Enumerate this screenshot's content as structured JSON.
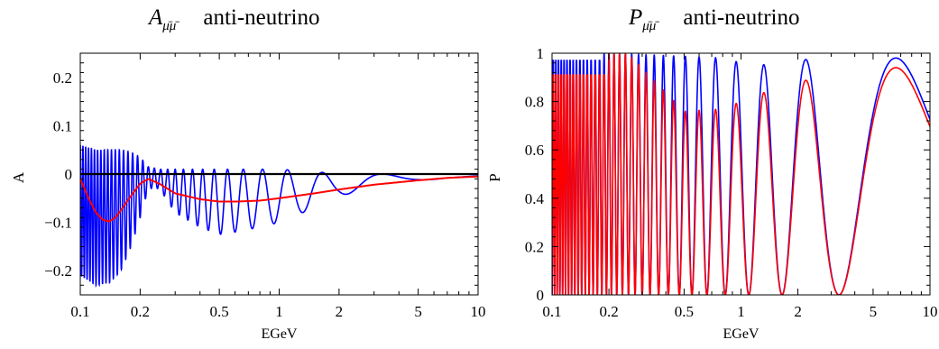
{
  "chart_data": [
    {
      "type": "line",
      "title_symbol": "A",
      "title_subscript": "μ̄μ̄",
      "title_text": "anti-neutrino",
      "xlabel": "EGeV",
      "ylabel": "A",
      "xscale": "log",
      "xlim": [
        0.1,
        10
      ],
      "ylim": [
        -0.25,
        0.25
      ],
      "xticks": [
        {
          "value": 0.1,
          "label": "0.1"
        },
        {
          "value": 0.2,
          "label": "0.2"
        },
        {
          "value": 0.5,
          "label": "0.5"
        },
        {
          "value": 1,
          "label": "1"
        },
        {
          "value": 2,
          "label": "2"
        },
        {
          "value": 5,
          "label": "5"
        },
        {
          "value": 10,
          "label": "10"
        }
      ],
      "yticks": [
        {
          "value": 0.2,
          "label": "0.2"
        },
        {
          "value": 0.1,
          "label": "0.1"
        },
        {
          "value": 0,
          "label": "0"
        },
        {
          "value": -0.1,
          "label": "-0.1"
        },
        {
          "value": -0.2,
          "label": "-0.2"
        }
      ],
      "grid": false,
      "series": [
        {
          "color": "#0000ff",
          "description": "oscillating curve",
          "x": [
            0.1,
            0.12,
            0.14,
            0.16,
            0.18,
            0.2,
            0.22,
            0.25,
            0.3,
            0.4,
            0.5,
            0.6,
            0.8,
            1,
            1.5,
            2,
            3,
            5,
            7,
            10
          ],
          "envelope_upper": [
            0.06,
            0.05,
            0.05,
            0.05,
            0.045,
            0.035,
            0.015,
            0.01,
            0.01,
            0.01,
            0.01,
            0.01,
            0.01,
            0.01,
            0.005,
            0.0,
            0.0,
            0.0,
            0.0,
            0.0
          ],
          "envelope_lower": [
            -0.21,
            -0.23,
            -0.225,
            -0.2,
            -0.15,
            -0.09,
            -0.03,
            -0.03,
            -0.08,
            -0.11,
            -0.125,
            -0.12,
            -0.11,
            -0.1,
            -0.07,
            -0.045,
            -0.03,
            -0.015,
            -0.008,
            -0.005
          ]
        },
        {
          "color": "#ff0000",
          "description": "smooth curve",
          "x": [
            0.1,
            0.11,
            0.12,
            0.13,
            0.14,
            0.15,
            0.16,
            0.18,
            0.2,
            0.22,
            0.25,
            0.3,
            0.4,
            0.5,
            0.6,
            0.8,
            1,
            1.5,
            2,
            3,
            5,
            7,
            10
          ],
          "y": [
            -0.01,
            -0.05,
            -0.08,
            -0.095,
            -0.098,
            -0.09,
            -0.075,
            -0.045,
            -0.02,
            -0.01,
            -0.02,
            -0.04,
            -0.052,
            -0.057,
            -0.057,
            -0.055,
            -0.05,
            -0.04,
            -0.032,
            -0.022,
            -0.013,
            -0.008,
            -0.005
          ]
        },
        {
          "color": "#000000",
          "description": "zero line",
          "x": [
            0.1,
            10
          ],
          "y": [
            0,
            0
          ]
        }
      ]
    },
    {
      "type": "line",
      "title_symbol": "P",
      "title_subscript": "μ̄μ̄",
      "title_text": "anti-neutrino",
      "xlabel": "EGeV",
      "ylabel": "P",
      "xscale": "log",
      "xlim": [
        0.1,
        10
      ],
      "ylim": [
        0,
        1
      ],
      "xticks": [
        {
          "value": 0.1,
          "label": "0.1"
        },
        {
          "value": 0.2,
          "label": "0.2"
        },
        {
          "value": 0.5,
          "label": "0.5"
        },
        {
          "value": 1,
          "label": "1"
        },
        {
          "value": 2,
          "label": "2"
        },
        {
          "value": 5,
          "label": "5"
        },
        {
          "value": 10,
          "label": "10"
        }
      ],
      "yticks": [
        {
          "value": 1,
          "label": "1"
        },
        {
          "value": 0.8,
          "label": "0.8"
        },
        {
          "value": 0.6,
          "label": "0.6"
        },
        {
          "value": 0.4,
          "label": "0.4"
        },
        {
          "value": 0.2,
          "label": "0.2"
        },
        {
          "value": 0,
          "label": "0"
        }
      ],
      "grid": false,
      "series": [
        {
          "color": "#0000ff",
          "description": "oscillation probability (blue)",
          "zero_crossings_GeV": [
            3.3,
            1.65,
            1.1,
            0.82,
            0.66,
            0.55,
            0.47
          ],
          "peaks": [
            {
              "x": 5.0,
              "y": 0.98
            },
            {
              "x": 2.5,
              "y": 0.98
            },
            {
              "x": 1.65,
              "y": 0.96
            },
            {
              "x": 1.24,
              "y": 0.95
            },
            {
              "x": 0.99,
              "y": 0.96
            },
            {
              "x": 0.82,
              "y": 0.98
            },
            {
              "x": 0.2,
              "y": 1.0
            }
          ],
          "low_energy_band": {
            "x": [
              0.1,
              0.18
            ],
            "y_min": 0.0,
            "y_max": 0.97
          }
        },
        {
          "color": "#ff0000",
          "description": "oscillation probability (red)",
          "peaks": [
            {
              "x": 5.0,
              "y": 0.94
            },
            {
              "x": 2.5,
              "y": 0.9
            },
            {
              "x": 1.65,
              "y": 0.86
            },
            {
              "x": 1.24,
              "y": 0.83
            },
            {
              "x": 0.99,
              "y": 0.8
            },
            {
              "x": 0.82,
              "y": 0.77
            },
            {
              "x": 0.5,
              "y": 0.76
            },
            {
              "x": 0.25,
              "y": 1.0
            }
          ],
          "low_energy_band": {
            "x": [
              0.1,
              0.2
            ],
            "y_min": 0.0,
            "y_max": 0.91
          }
        }
      ]
    }
  ]
}
